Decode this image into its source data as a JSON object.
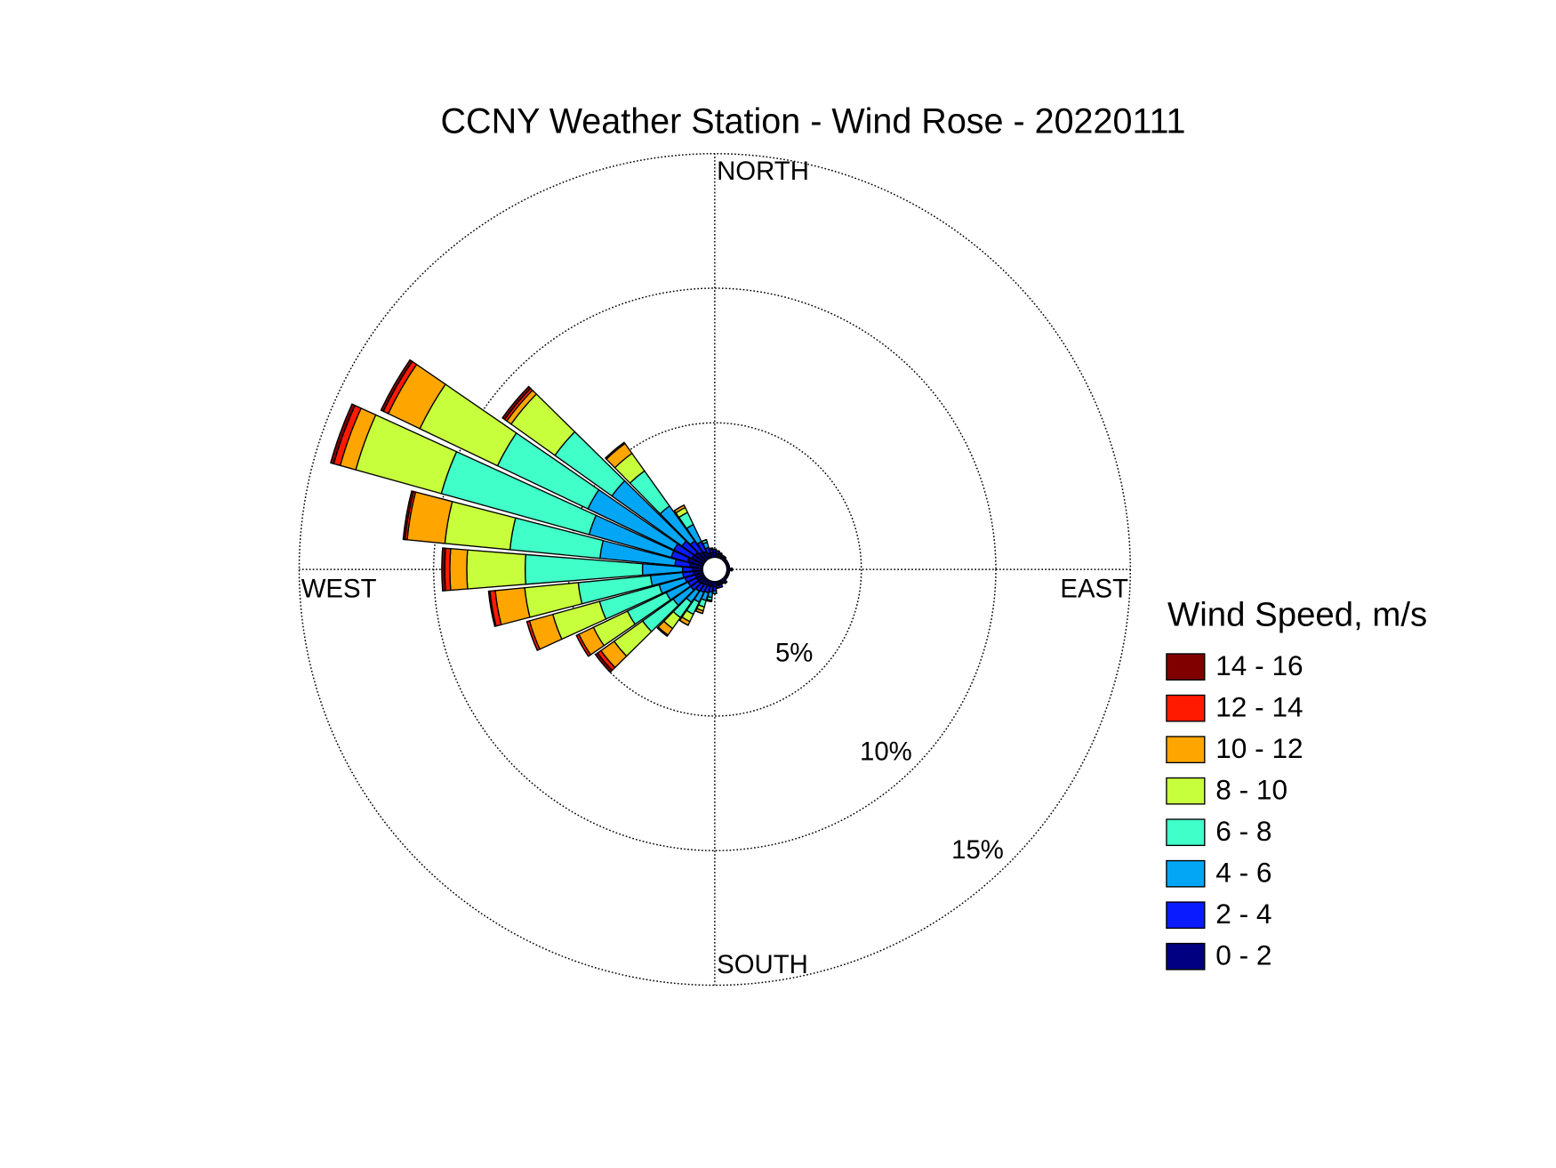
{
  "chart_data": {
    "type": "windrose",
    "title": "CCNY Weather Station - Wind Rose - 20220111",
    "legend_title": "Wind Speed, m/s",
    "x": [
      0,
      10,
      20,
      30,
      40,
      50,
      60,
      70,
      80,
      90,
      100,
      110,
      120,
      130,
      140,
      150,
      160,
      170,
      180,
      190,
      200,
      210,
      220,
      230,
      240,
      250,
      260,
      270,
      280,
      290,
      300,
      310,
      320,
      330,
      340,
      350
    ],
    "xticks": [
      {
        "value": 0,
        "label": "NORTH"
      },
      {
        "value": 90,
        "label": "EAST"
      },
      {
        "value": 180,
        "label": "SOUTH"
      },
      {
        "value": 270,
        "label": "WEST"
      }
    ],
    "ylim": [
      0,
      15
    ],
    "yticks": [
      {
        "value": 5,
        "label": "5%"
      },
      {
        "value": 10,
        "label": "10%"
      },
      {
        "value": 15,
        "label": "15%"
      }
    ],
    "grid": true,
    "legend": "right",
    "series": [
      {
        "name": "0 - 2",
        "color": "#000080",
        "values": [
          0.2,
          0.15,
          0.15,
          0.1,
          0.1,
          0.1,
          0.1,
          0.1,
          0.1,
          0.15,
          0.1,
          0.1,
          0.1,
          0.1,
          0.15,
          0.1,
          0.15,
          0.15,
          0.2,
          0.2,
          0.2,
          0.2,
          0.25,
          0.3,
          0.3,
          0.3,
          0.35,
          0.37,
          0.49,
          0.6,
          0.49,
          0.45,
          0.35,
          0.3,
          0.2,
          0.2
        ]
      },
      {
        "name": "2 - 4",
        "color": "#0a1cff",
        "values": [
          0.1,
          0.1,
          0.05,
          0.05,
          0.05,
          0,
          0,
          0,
          0,
          0.05,
          0,
          0,
          0,
          0,
          0.05,
          0.05,
          0.1,
          0.1,
          0.15,
          0.2,
          0.25,
          0.3,
          0.3,
          0.35,
          0.35,
          0.4,
          0.4,
          0.38,
          0.55,
          0.63,
          0.74,
          0.6,
          0.5,
          0.4,
          0.2,
          0.1
        ]
      },
      {
        "name": "4 - 6",
        "color": "#02a6f5",
        "values": [
          0,
          0,
          0,
          0,
          0,
          0,
          0,
          0,
          0,
          0,
          0,
          0,
          0,
          0,
          0,
          0,
          0,
          0,
          0.1,
          0.2,
          0.3,
          0.4,
          0.5,
          0.8,
          0.9,
          1.0,
          1.2,
          1.49,
          2.8,
          3.17,
          3.55,
          3.2,
          1.6,
          0.7,
          0.2,
          0.05
        ]
      },
      {
        "name": "6 - 8",
        "color": "#40ffc8",
        "values": [
          0,
          0,
          0,
          0,
          0,
          0,
          0,
          0,
          0,
          0,
          0,
          0,
          0,
          0,
          0,
          0,
          0,
          0,
          0,
          0.1,
          0.25,
          0.5,
          0.7,
          1.4,
          1.6,
          2.3,
          2.7,
          4.36,
          3.36,
          5.7,
          3.72,
          2.6,
          1.6,
          0.5,
          0.1,
          0
        ]
      },
      {
        "name": "8 - 10",
        "color": "#c8ff3c",
        "values": [
          0,
          0,
          0,
          0,
          0,
          0,
          0,
          0,
          0,
          0,
          0,
          0,
          0,
          0,
          0,
          0,
          0,
          0,
          0,
          0.05,
          0.15,
          0.3,
          0.5,
          1.3,
          1.4,
          1.8,
          2.0,
          2.17,
          2.43,
          3.3,
          3.2,
          2.0,
          0.8,
          0.2,
          0,
          0
        ]
      },
      {
        "name": "10 - 12",
        "color": "#ffa500",
        "values": [
          0,
          0,
          0,
          0,
          0,
          0,
          0,
          0,
          0,
          0,
          0,
          0,
          0,
          0,
          0,
          0,
          0,
          0,
          0,
          0,
          0.1,
          0.15,
          0.3,
          0.6,
          0.6,
          0.9,
          1.1,
          0.63,
          1.41,
          0.6,
          1.3,
          0.2,
          0.45,
          0.1,
          0,
          0
        ]
      },
      {
        "name": "12 - 14",
        "color": "#ff1a00",
        "values": [
          0,
          0,
          0,
          0,
          0,
          0,
          0,
          0,
          0,
          0,
          0,
          0,
          0,
          0,
          0,
          0,
          0,
          0,
          0,
          0,
          0,
          0,
          0.05,
          0.15,
          0.1,
          0.1,
          0.2,
          0.19,
          0.08,
          0.25,
          0.2,
          0.1,
          0.05,
          0,
          0,
          0
        ]
      },
      {
        "name": "14 - 16",
        "color": "#800000",
        "values": [
          0,
          0,
          0,
          0,
          0,
          0,
          0,
          0,
          0,
          0,
          0,
          0,
          0,
          0,
          0,
          0,
          0,
          0,
          0,
          0,
          0,
          0,
          0,
          0.1,
          0,
          0,
          0.05,
          0.11,
          0.07,
          0.12,
          0.1,
          0.1,
          0,
          0,
          0,
          0
        ]
      }
    ]
  }
}
